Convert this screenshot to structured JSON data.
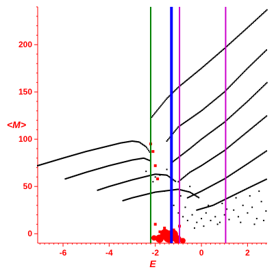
{
  "chart_data": {
    "type": "scatter",
    "xlabel": "E",
    "ylabel": "<M>",
    "xlim": [
      -7.1,
      2.85
    ],
    "ylim": [
      -10,
      240
    ],
    "x_ticks": [
      -6,
      -4,
      -2,
      0,
      2
    ],
    "x_tick_labels": [
      "-6",
      "-4",
      "-2",
      "0",
      "2"
    ],
    "y_ticks": [
      0,
      50,
      100,
      150,
      200
    ],
    "y_tick_labels": [
      "0",
      "50",
      "100",
      "150",
      "200"
    ],
    "grid": false,
    "colors": {
      "axis": "#ff0000",
      "points": "#000000",
      "highlight": "#ff0000"
    },
    "vertical_lines": [
      {
        "x": -2.2,
        "color": "#008000",
        "width": 2
      },
      {
        "x": -1.3,
        "color": "#0000ff",
        "width": 4
      },
      {
        "x": -0.95,
        "color": "#cc00cc",
        "width": 2
      },
      {
        "x": 1.05,
        "color": "#cc00cc",
        "width": 2
      }
    ],
    "curves": [
      {
        "x": [
          -7.1,
          -6.0,
          -5.0,
          -4.0,
          -3.5,
          -3.0,
          -2.7,
          -2.4,
          -2.2
        ],
        "y": [
          72,
          80,
          87,
          93,
          96,
          98,
          97,
          92,
          85
        ]
      },
      {
        "x": [
          -5.9,
          -5.0,
          -4.0,
          -3.0,
          -2.5,
          -2.2
        ],
        "y": [
          58,
          65,
          72,
          78,
          80,
          77
        ]
      },
      {
        "x": [
          -4.5,
          -4.0,
          -3.0,
          -2.0,
          -1.5,
          -1.1
        ],
        "y": [
          46,
          50,
          57,
          63,
          62,
          55
        ]
      },
      {
        "x": [
          -3.4,
          -3.0,
          -2.0,
          -1.0,
          -0.5,
          -0.1
        ],
        "y": [
          35,
          38,
          44,
          47,
          44,
          38
        ]
      },
      {
        "x": [
          -2.2,
          -1.5,
          -1.0,
          0.0,
          1.0,
          2.0,
          2.85
        ],
        "y": [
          122,
          143,
          155,
          175,
          196,
          218,
          237
        ]
      },
      {
        "x": [
          -1.5,
          -1.0,
          0.0,
          1.0,
          2.0,
          2.85
        ],
        "y": [
          98,
          113,
          130,
          150,
          175,
          195
        ]
      },
      {
        "x": [
          -1.3,
          -0.5,
          0.0,
          1.0,
          2.0,
          2.85
        ],
        "y": [
          75,
          90,
          100,
          118,
          140,
          160
        ]
      },
      {
        "x": [
          -1.0,
          -0.5,
          0.0,
          1.0,
          2.0,
          2.85
        ],
        "y": [
          55,
          65,
          72,
          88,
          108,
          125
        ]
      },
      {
        "x": [
          -0.6,
          0.0,
          1.0,
          2.0,
          2.85
        ],
        "y": [
          38,
          45,
          58,
          74,
          88
        ]
      },
      {
        "x": [
          -0.2,
          0.5,
          1.0,
          2.0,
          2.85
        ],
        "y": [
          25,
          30,
          36,
          48,
          58
        ]
      }
    ],
    "scatter_points": [
      [
        -0.8,
        18
      ],
      [
        -0.6,
        14
      ],
      [
        -0.4,
        20
      ],
      [
        -0.2,
        12
      ],
      [
        0.0,
        16
      ],
      [
        0.2,
        22
      ],
      [
        0.4,
        14
      ],
      [
        0.6,
        18
      ],
      [
        0.8,
        12
      ],
      [
        1.0,
        20
      ],
      [
        1.2,
        15
      ],
      [
        1.4,
        25
      ],
      [
        1.6,
        18
      ],
      [
        1.8,
        30
      ],
      [
        2.0,
        22
      ],
      [
        2.2,
        28
      ],
      [
        2.4,
        16
      ],
      [
        2.6,
        34
      ],
      [
        2.8,
        24
      ],
      [
        -0.7,
        28
      ],
      [
        0.3,
        30
      ],
      [
        0.9,
        32
      ],
      [
        1.5,
        38
      ],
      [
        2.1,
        40
      ],
      [
        2.5,
        45
      ],
      [
        1.1,
        26
      ],
      [
        0.1,
        8
      ],
      [
        -0.3,
        6
      ],
      [
        0.7,
        10
      ],
      [
        1.7,
        12
      ],
      [
        2.3,
        10
      ],
      [
        2.7,
        14
      ],
      [
        -1.5,
        68
      ],
      [
        -1.8,
        62
      ],
      [
        -2.0,
        60
      ],
      [
        -2.4,
        66
      ],
      [
        -1.0,
        22
      ],
      [
        -1.2,
        30
      ],
      [
        -1.6,
        45
      ],
      [
        -2.1,
        55
      ],
      [
        -0.9,
        40
      ],
      [
        -0.5,
        50
      ]
    ],
    "highlight_points": [
      [
        -2.2,
        95
      ],
      [
        -2.1,
        87
      ],
      [
        -2.0,
        72
      ],
      [
        -1.9,
        58
      ],
      [
        -1.6,
        6
      ],
      [
        -1.2,
        4
      ],
      [
        -2.0,
        10
      ],
      [
        -0.95,
        8
      ],
      [
        -1.8,
        2
      ],
      [
        -1.5,
        0
      ],
      [
        -1.3,
        -2
      ],
      [
        -1.1,
        -4
      ]
    ],
    "cluster": {
      "x": -1.4,
      "y": -3
    }
  }
}
